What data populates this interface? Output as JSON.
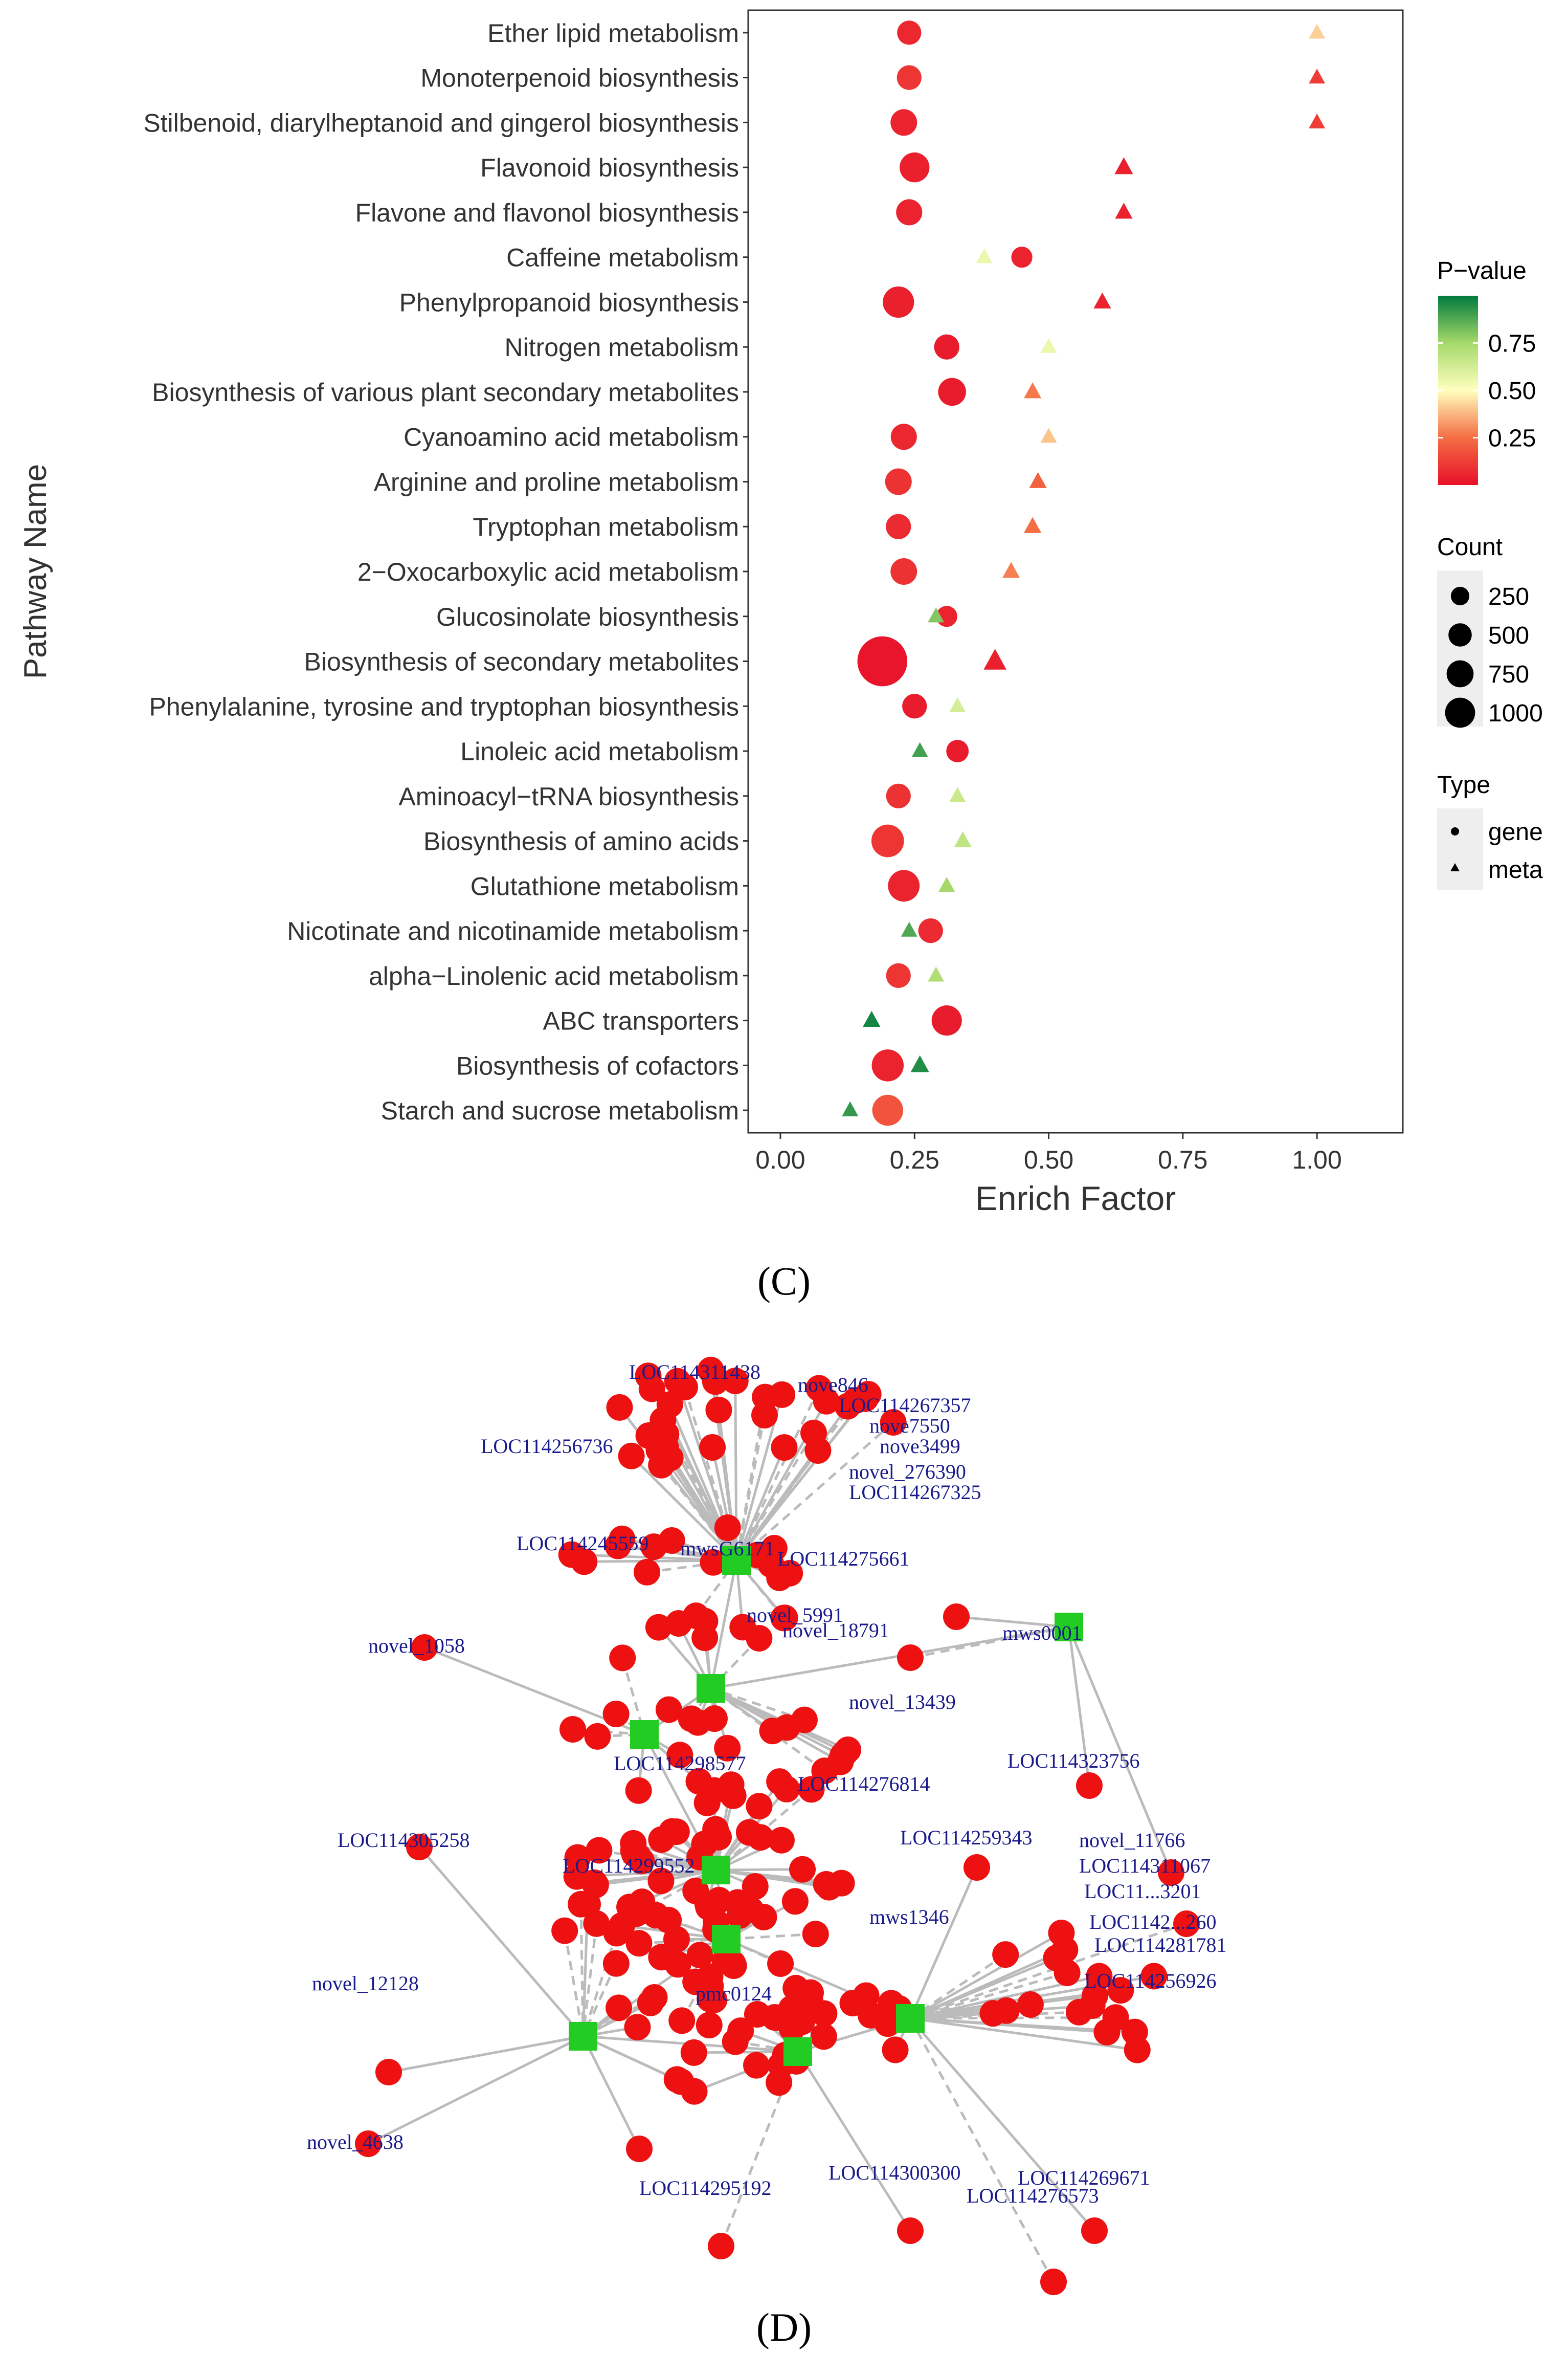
{
  "chart_data": {
    "type": "scatter",
    "ylabel": "Pathway Name",
    "xlabel": "Enrich Factor",
    "xlim": [
      -0.06,
      1.16
    ],
    "xticks": [
      0.0,
      0.25,
      0.5,
      0.75,
      1.0
    ],
    "xtick_labels": [
      "0.00",
      "0.25",
      "0.50",
      "0.75",
      "1.00"
    ],
    "grid": false,
    "categories": [
      "Ether lipid metabolism",
      "Monoterpenoid biosynthesis",
      "Stilbenoid, diarylheptanoid and gingerol biosynthesis",
      "Flavonoid biosynthesis",
      "Flavone and flavonol biosynthesis",
      "Caffeine metabolism",
      "Phenylpropanoid biosynthesis",
      "Nitrogen metabolism",
      "Biosynthesis of various plant secondary metabolites",
      "Cyanoamino acid metabolism",
      "Arginine and proline metabolism",
      "Tryptophan metabolism",
      "2−Oxocarboxylic acid metabolism",
      "Glucosinolate biosynthesis",
      "Biosynthesis of secondary metabolites",
      "Phenylalanine, tyrosine and tryptophan biosynthesis",
      "Linoleic acid metabolism",
      "Aminoacyl−tRNA biosynthesis",
      "Biosynthesis of amino acids",
      "Glutathione metabolism",
      "Nicotinate and nicotinamide metabolism",
      "alpha−Linolenic acid metabolism",
      "ABC transporters",
      "Biosynthesis of cofactors",
      "Starch and sucrose metabolism"
    ],
    "series": [
      {
        "name": "gene",
        "shape": "circle",
        "x": [
          0.24,
          0.24,
          0.23,
          0.25,
          0.24,
          0.45,
          0.22,
          0.31,
          0.32,
          0.23,
          0.22,
          0.22,
          0.23,
          0.31,
          0.19,
          0.25,
          0.33,
          0.22,
          0.2,
          0.23,
          0.28,
          0.22,
          0.31,
          0.2,
          0.2
        ],
        "count": [
          120,
          130,
          170,
          250,
          160,
          70,
          290,
          140,
          200,
          160,
          170,
          140,
          170,
          70,
          1080,
          130,
          90,
          130,
          330,
          300,
          130,
          130,
          260,
          310,
          280
        ],
        "pvalue": [
          0.06,
          0.1,
          0.05,
          0.04,
          0.05,
          0.05,
          0.04,
          0.03,
          0.03,
          0.06,
          0.09,
          0.07,
          0.09,
          0.05,
          0.01,
          0.03,
          0.03,
          0.09,
          0.1,
          0.05,
          0.07,
          0.1,
          0.03,
          0.05,
          0.18
        ]
      },
      {
        "name": "meta",
        "shape": "triangle",
        "x": [
          1.0,
          1.0,
          1.0,
          0.64,
          0.64,
          0.38,
          0.6,
          0.5,
          0.47,
          0.5,
          0.48,
          0.47,
          0.43,
          0.29,
          0.4,
          0.33,
          0.26,
          0.33,
          0.34,
          0.31,
          0.24,
          0.29,
          0.17,
          0.26,
          0.13
        ],
        "count": [
          20,
          20,
          20,
          40,
          30,
          20,
          30,
          20,
          30,
          20,
          30,
          30,
          30,
          20,
          100,
          20,
          20,
          20,
          30,
          20,
          20,
          20,
          30,
          40,
          20
        ],
        "pvalue": [
          0.42,
          0.12,
          0.12,
          0.04,
          0.05,
          0.55,
          0.05,
          0.55,
          0.27,
          0.4,
          0.22,
          0.25,
          0.28,
          0.8,
          0.04,
          0.62,
          0.9,
          0.65,
          0.68,
          0.75,
          0.88,
          0.72,
          0.97,
          0.95,
          0.92
        ]
      }
    ],
    "legend": {
      "pvalue_title": "P−value",
      "pvalue_ticks": [
        "0.75",
        "0.50",
        "0.25"
      ],
      "pvalue_tick_values": [
        0.75,
        0.5,
        0.25
      ],
      "count_title": "Count",
      "count_entries": [
        "250",
        "500",
        "750",
        "1000"
      ],
      "count_values": [
        250,
        500,
        750,
        1000
      ],
      "type_title": "Type",
      "type_entries": [
        "gene",
        "meta"
      ],
      "placement": "right"
    },
    "colors": {
      "low": "#cc0022",
      "mid_low": "#f46d43",
      "mid": "#ffffbf",
      "mid_high": "#a6d96a",
      "high": "#00733c"
    }
  },
  "panel_c_label": "(C)",
  "panel_d_label": "(D)",
  "network": {
    "edge_color": "#bbbbbb",
    "gene_color": "#ee1111",
    "meta_color": "#22cc22",
    "label_color": "#1a1a8c",
    "labels": [
      "LOC114311438",
      "nove846",
      "LOC114267357",
      "nove7550",
      "nove3499",
      "LOC114256736",
      "novel_276390",
      "LOC114267325",
      "LOC114245559",
      "mwsG6171",
      "LOC114275661",
      "novel_1058",
      "novel_18791",
      "mws0001",
      "novel_13439",
      "LOC114298577",
      "LOC114276814",
      "LOC114323756",
      "LOC114305258",
      "LOC114259343",
      "novel_11766",
      "LOC114311067",
      "LOC11...3201",
      "LOC1142...260",
      "LOC114281781",
      "novel_12128",
      "LOC114256926",
      "novel_4638",
      "LOC114295192",
      "LOC114300300",
      "LOC114269671",
      "LOC114276573",
      "pmc0124",
      "mws1346",
      "novel_5991",
      "LOC114299552"
    ]
  }
}
